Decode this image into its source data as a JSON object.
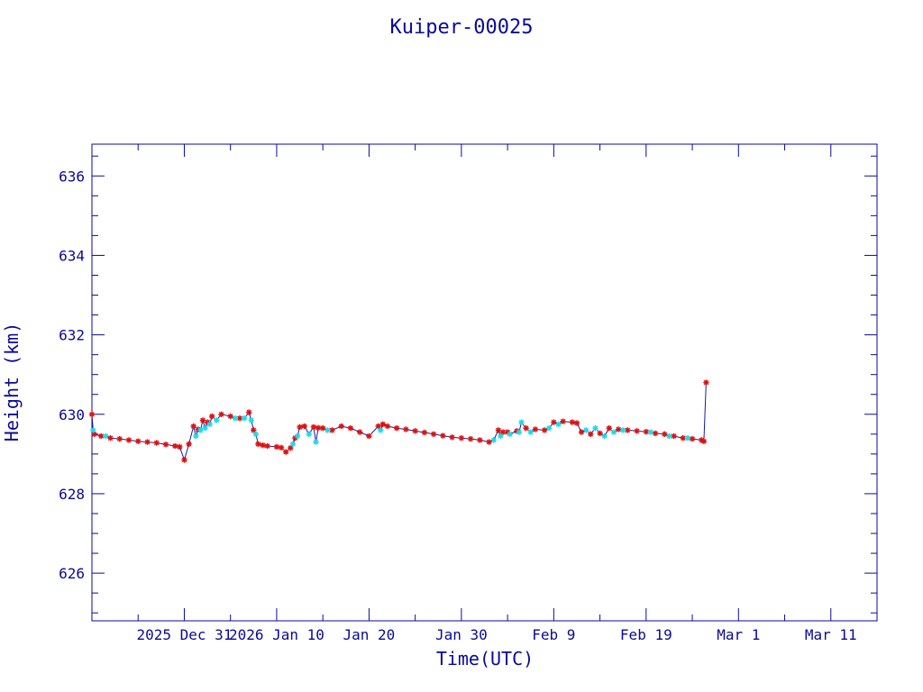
{
  "chart_data": {
    "type": "scatter",
    "title": "Kuiper-00025",
    "xlabel": "Time(UTC)",
    "ylabel": "Height (km)",
    "x_ticks": [
      "2025 Dec 31",
      "2026 Jan 10",
      "Jan 20",
      "Jan 30",
      "Feb  9",
      "Feb 19",
      "Mar  1",
      "Mar 11"
    ],
    "y_ticks": [
      "626",
      "628",
      "630",
      "632",
      "634",
      "636"
    ],
    "xlim": [
      "2025-12-21",
      "2026-03-16"
    ],
    "ylim": [
      624.8,
      636.8
    ],
    "grid": false,
    "colors": {
      "axis": "#0a0a99",
      "line": "#1a1aa0",
      "primary": "#dd1111",
      "secondary": "#22d8e8"
    },
    "series": [
      {
        "marker": "star",
        "color": "#dd1111",
        "points": [
          [
            "2025-12-21T00:00",
            630.0
          ],
          [
            "2025-12-21T06:00",
            629.5
          ],
          [
            "2025-12-22T00:00",
            629.45
          ],
          [
            "2025-12-23T00:00",
            629.4
          ],
          [
            "2025-12-24T00:00",
            629.38
          ],
          [
            "2025-12-25T00:00",
            629.35
          ],
          [
            "2025-12-26T00:00",
            629.32
          ],
          [
            "2025-12-27T00:00",
            629.3
          ],
          [
            "2025-12-28T00:00",
            629.28
          ],
          [
            "2025-12-29T00:00",
            629.24
          ],
          [
            "2025-12-30T00:00",
            629.2
          ],
          [
            "2025-12-30T12:00",
            629.18
          ],
          [
            "2025-12-31T00:00",
            628.85
          ],
          [
            "2025-12-31T12:00",
            629.25
          ],
          [
            "2026-01-01T00:00",
            629.7
          ],
          [
            "2026-01-01T12:00",
            629.62
          ],
          [
            "2026-01-02T00:00",
            629.85
          ],
          [
            "2026-01-02T12:00",
            629.8
          ],
          [
            "2026-01-03T00:00",
            629.95
          ],
          [
            "2026-01-04T00:00",
            630.0
          ],
          [
            "2026-01-05T00:00",
            629.95
          ],
          [
            "2026-01-06T00:00",
            629.9
          ],
          [
            "2026-01-07T00:00",
            630.05
          ],
          [
            "2026-01-07T12:00",
            629.6
          ],
          [
            "2026-01-08T00:00",
            629.25
          ],
          [
            "2026-01-08T12:00",
            629.22
          ],
          [
            "2026-01-09T00:00",
            629.2
          ],
          [
            "2026-01-10T00:00",
            629.18
          ],
          [
            "2026-01-10T12:00",
            629.16
          ],
          [
            "2026-01-11T00:00",
            629.05
          ],
          [
            "2026-01-11T12:00",
            629.15
          ],
          [
            "2026-01-12T00:00",
            629.4
          ],
          [
            "2026-01-12T12:00",
            629.68
          ],
          [
            "2026-01-13T00:00",
            629.7
          ],
          [
            "2026-01-14T00:00",
            629.68
          ],
          [
            "2026-01-14T12:00",
            629.66
          ],
          [
            "2026-01-15T00:00",
            629.65
          ],
          [
            "2026-01-16T00:00",
            629.6
          ],
          [
            "2026-01-17T00:00",
            629.7
          ],
          [
            "2026-01-18T00:00",
            629.65
          ],
          [
            "2026-01-19T00:00",
            629.55
          ],
          [
            "2026-01-20T00:00",
            629.45
          ],
          [
            "2026-01-21T00:00",
            629.7
          ],
          [
            "2026-01-21T12:00",
            629.75
          ],
          [
            "2026-01-22T00:00",
            629.7
          ],
          [
            "2026-01-23T00:00",
            629.65
          ],
          [
            "2026-01-24T00:00",
            629.62
          ],
          [
            "2026-01-25T00:00",
            629.58
          ],
          [
            "2026-01-26T00:00",
            629.54
          ],
          [
            "2026-01-27T00:00",
            629.5
          ],
          [
            "2026-01-28T00:00",
            629.46
          ],
          [
            "2026-01-29T00:00",
            629.42
          ],
          [
            "2026-01-30T00:00",
            629.4
          ],
          [
            "2026-01-31T00:00",
            629.38
          ],
          [
            "2026-02-01T00:00",
            629.35
          ],
          [
            "2026-02-02T00:00",
            629.3
          ],
          [
            "2026-02-03T00:00",
            629.6
          ],
          [
            "2026-02-03T12:00",
            629.55
          ],
          [
            "2026-02-04T00:00",
            629.55
          ],
          [
            "2026-02-05T00:00",
            629.58
          ],
          [
            "2026-02-06T00:00",
            629.65
          ],
          [
            "2026-02-07T00:00",
            629.62
          ],
          [
            "2026-02-08T00:00",
            629.6
          ],
          [
            "2026-02-09T00:00",
            629.8
          ],
          [
            "2026-02-10T00:00",
            629.82
          ],
          [
            "2026-02-11T00:00",
            629.8
          ],
          [
            "2026-02-11T12:00",
            629.78
          ],
          [
            "2026-02-12T00:00",
            629.55
          ],
          [
            "2026-02-13T00:00",
            629.5
          ],
          [
            "2026-02-14T00:00",
            629.52
          ],
          [
            "2026-02-15T00:00",
            629.65
          ],
          [
            "2026-02-16T00:00",
            629.62
          ],
          [
            "2026-02-17T00:00",
            629.6
          ],
          [
            "2026-02-18T00:00",
            629.58
          ],
          [
            "2026-02-19T00:00",
            629.56
          ],
          [
            "2026-02-20T00:00",
            629.52
          ],
          [
            "2026-02-21T00:00",
            629.5
          ],
          [
            "2026-02-22T00:00",
            629.45
          ],
          [
            "2026-02-23T00:00",
            629.4
          ],
          [
            "2026-02-24T00:00",
            629.38
          ],
          [
            "2026-02-25T00:00",
            629.35
          ],
          [
            "2026-02-25T06:00",
            629.32
          ],
          [
            "2026-02-25T12:00",
            630.8
          ]
        ]
      },
      {
        "marker": "star",
        "color": "#22d8e8",
        "points": [
          [
            "2025-12-21T03:00",
            629.6
          ],
          [
            "2025-12-22T12:00",
            629.45
          ],
          [
            "2026-01-01T06:00",
            629.45
          ],
          [
            "2026-01-01T18:00",
            629.6
          ],
          [
            "2026-01-02T06:00",
            629.65
          ],
          [
            "2026-01-02T18:00",
            629.75
          ],
          [
            "2026-01-03T12:00",
            629.85
          ],
          [
            "2026-01-05T12:00",
            629.9
          ],
          [
            "2026-01-06T12:00",
            629.9
          ],
          [
            "2026-01-07T06:00",
            629.85
          ],
          [
            "2026-01-07T18:00",
            629.5
          ],
          [
            "2026-01-11T18:00",
            629.25
          ],
          [
            "2026-01-12T06:00",
            629.45
          ],
          [
            "2026-01-13T12:00",
            629.5
          ],
          [
            "2026-01-14T06:00",
            629.3
          ],
          [
            "2026-01-15T12:00",
            629.6
          ],
          [
            "2026-01-21T06:00",
            629.6
          ],
          [
            "2026-02-02T12:00",
            629.35
          ],
          [
            "2026-02-03T06:00",
            629.45
          ],
          [
            "2026-02-04T06:00",
            629.5
          ],
          [
            "2026-02-05T06:00",
            629.55
          ],
          [
            "2026-02-05T12:00",
            629.8
          ],
          [
            "2026-02-06T12:00",
            629.55
          ],
          [
            "2026-02-08T12:00",
            629.65
          ],
          [
            "2026-02-09T12:00",
            629.75
          ],
          [
            "2026-02-12T12:00",
            629.6
          ],
          [
            "2026-02-13T12:00",
            629.65
          ],
          [
            "2026-02-14T12:00",
            629.45
          ],
          [
            "2026-02-15T12:00",
            629.55
          ],
          [
            "2026-02-16T12:00",
            629.6
          ],
          [
            "2026-02-19T12:00",
            629.55
          ],
          [
            "2026-02-21T12:00",
            629.45
          ],
          [
            "2026-02-23T12:00",
            629.4
          ]
        ]
      }
    ]
  }
}
